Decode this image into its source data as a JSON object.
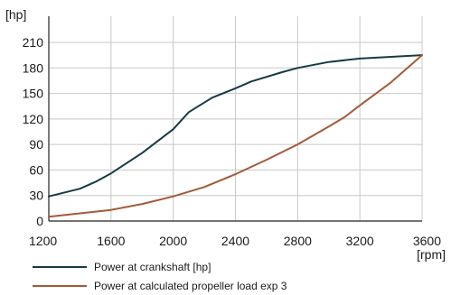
{
  "chart_data": {
    "type": "line",
    "title": "",
    "xlabel": "[rpm]",
    "ylabel": "[hp]",
    "xlim": [
      1200,
      3600
    ],
    "ylim": [
      0,
      210
    ],
    "x_ticks": [
      1200,
      1600,
      2000,
      2400,
      2800,
      3200,
      3600
    ],
    "y_ticks": [
      0,
      30,
      60,
      90,
      120,
      150,
      180,
      210
    ],
    "grid": true,
    "legend_position": "bottom",
    "series": [
      {
        "name": "Power at crankshaft [hp]",
        "color": "#173a46",
        "x": [
          1200,
          1400,
          1500,
          1600,
          1800,
          2000,
          2100,
          2250,
          2400,
          2500,
          2700,
          2800,
          3000,
          3200,
          3400,
          3600
        ],
        "y": [
          29,
          38,
          46,
          56,
          80,
          108,
          128,
          145,
          156,
          164,
          175,
          180,
          187,
          191,
          193,
          195
        ]
      },
      {
        "name": "Power at calculated propeller load exp 3",
        "color": "#a35a3b",
        "x": [
          1200,
          1400,
          1600,
          1800,
          2000,
          2200,
          2400,
          2600,
          2800,
          3000,
          3100,
          3200,
          3400,
          3600
        ],
        "y": [
          5,
          9,
          13,
          20,
          29,
          40,
          55,
          72,
          90,
          111,
          122,
          136,
          163,
          195
        ]
      }
    ]
  }
}
